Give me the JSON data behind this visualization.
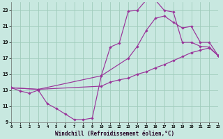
{
  "bg_color": "#c8e8e0",
  "grid_color": "#a0ccbc",
  "line_color": "#993399",
  "xlim": [
    0,
    23
  ],
  "ylim": [
    9,
    24
  ],
  "xticks": [
    0,
    1,
    2,
    3,
    4,
    5,
    6,
    7,
    8,
    9,
    10,
    11,
    12,
    13,
    14,
    15,
    16,
    17,
    18,
    19,
    20,
    21,
    22,
    23
  ],
  "yticks": [
    9,
    11,
    13,
    15,
    17,
    19,
    21,
    23
  ],
  "xlabel": "Windchill (Refroidissement éolien,°C)",
  "line1_x": [
    0,
    1,
    2,
    3,
    4,
    5,
    6,
    7,
    8,
    9,
    10,
    11,
    12,
    13,
    14,
    15,
    16,
    17,
    18,
    19,
    20,
    21,
    22,
    23
  ],
  "line1_y": [
    13.3,
    12.9,
    12.6,
    13.0,
    11.3,
    10.7,
    10.0,
    9.3,
    9.3,
    9.5,
    14.8,
    18.4,
    18.9,
    22.9,
    23.0,
    24.3,
    24.3,
    23.0,
    22.8,
    19.0,
    19.0,
    18.5,
    18.4,
    17.3
  ],
  "line2_x": [
    0,
    3,
    10,
    13,
    14,
    15,
    16,
    17,
    18,
    19,
    20,
    21,
    22,
    23
  ],
  "line2_y": [
    13.3,
    13.1,
    14.8,
    17.0,
    18.5,
    20.5,
    22.0,
    22.3,
    21.5,
    20.8,
    21.0,
    19.0,
    19.0,
    17.3
  ],
  "line3_x": [
    0,
    3,
    10,
    11,
    12,
    13,
    14,
    15,
    16,
    17,
    18,
    19,
    20,
    21,
    22,
    23
  ],
  "line3_y": [
    13.3,
    13.1,
    13.5,
    14.0,
    14.3,
    14.5,
    15.0,
    15.3,
    15.8,
    16.2,
    16.7,
    17.2,
    17.7,
    18.0,
    18.3,
    17.3
  ]
}
